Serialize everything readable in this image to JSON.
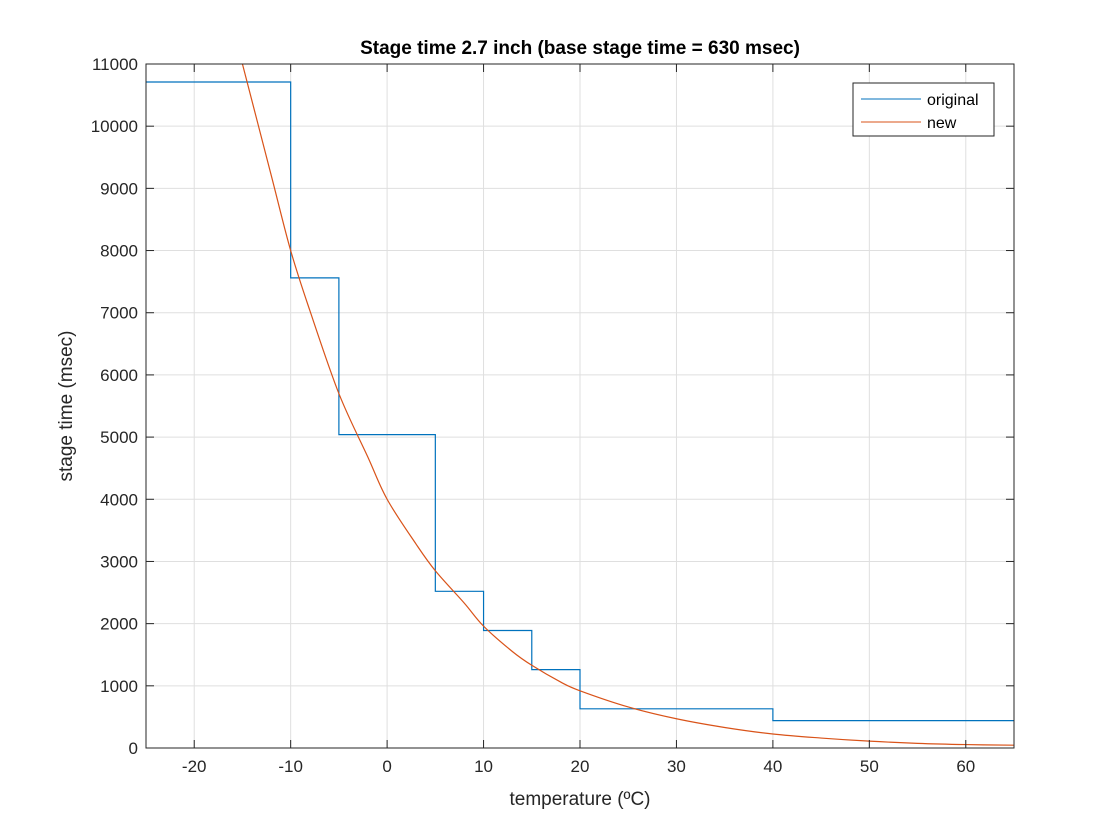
{
  "chart_data": {
    "type": "line",
    "title": "Stage time 2.7 inch (base stage time = 630 msec)",
    "xlabel": "temperature (ºC)",
    "ylabel": "stage time (msec)",
    "xlim": [
      -25,
      65
    ],
    "ylim": [
      0,
      11000
    ],
    "xticks": [
      -20,
      -10,
      0,
      10,
      20,
      30,
      40,
      50,
      60
    ],
    "yticks": [
      0,
      1000,
      2000,
      3000,
      4000,
      5000,
      6000,
      7000,
      8000,
      9000,
      10000,
      11000
    ],
    "grid": true,
    "legend_position": "top-right",
    "series": [
      {
        "name": "original",
        "color": "#0072bd",
        "style": "step",
        "x": [
          -25,
          -10,
          -10,
          -5,
          -5,
          5,
          5,
          10,
          10,
          15,
          15,
          20,
          20,
          40,
          40,
          65
        ],
        "y": [
          10710,
          10710,
          7560,
          7560,
          5040,
          5040,
          2520,
          2520,
          1890,
          1890,
          1260,
          1260,
          630,
          630,
          440,
          440
        ]
      },
      {
        "name": "new",
        "color": "#d95319",
        "style": "curve",
        "x": [
          -15,
          -12,
          -10,
          -8,
          -5,
          -2,
          0,
          3,
          5,
          8,
          10,
          13,
          15,
          18,
          20,
          25,
          30,
          35,
          40,
          45,
          50,
          55,
          60,
          65
        ],
        "y": [
          11000,
          9200,
          8000,
          7030,
          5700,
          4680,
          4000,
          3280,
          2850,
          2330,
          1960,
          1550,
          1330,
          1060,
          920,
          660,
          470,
          330,
          225,
          160,
          110,
          75,
          55,
          45
        ]
      }
    ]
  }
}
